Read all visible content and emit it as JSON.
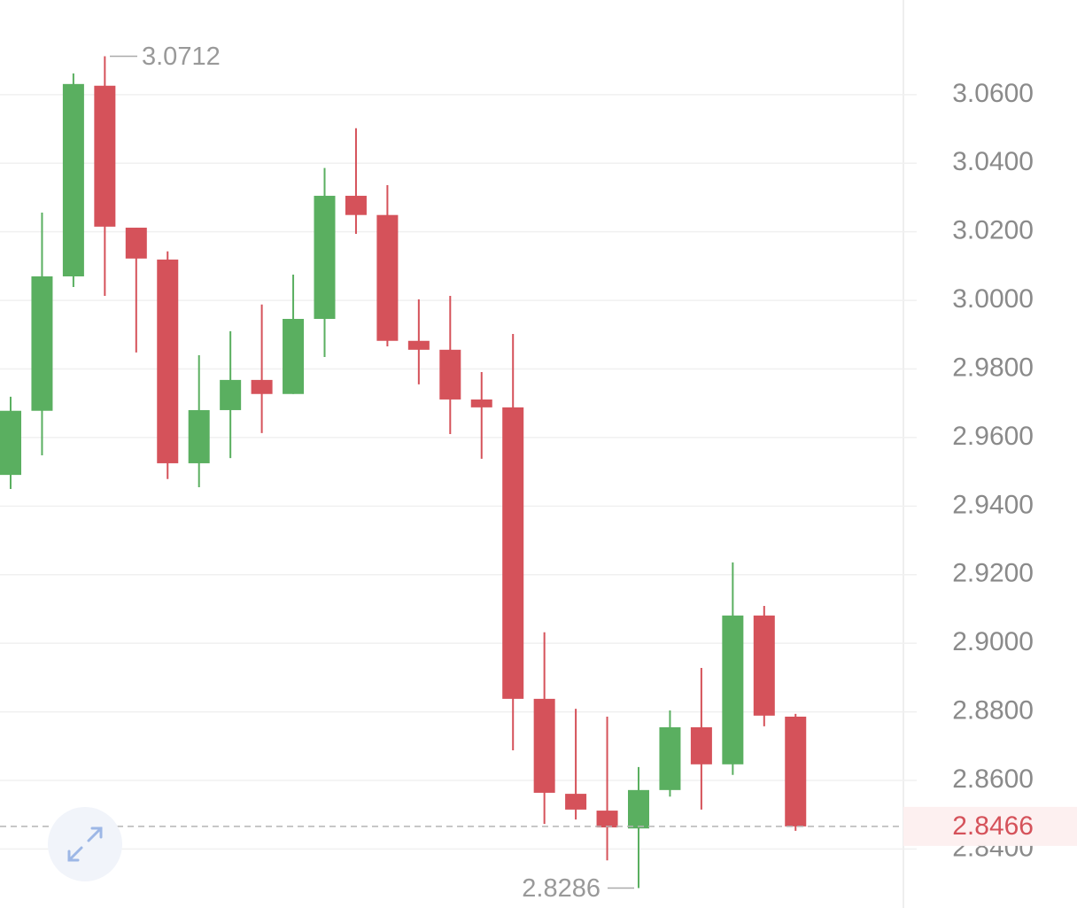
{
  "chart_data": {
    "type": "candlestick",
    "ylim": [
      2.8228,
      3.0876
    ],
    "yticks": [
      {
        "value": 3.06,
        "label": "3.0600"
      },
      {
        "value": 3.04,
        "label": "3.0400"
      },
      {
        "value": 3.02,
        "label": "3.0200"
      },
      {
        "value": 3.0,
        "label": "3.0000"
      },
      {
        "value": 2.98,
        "label": "2.9800"
      },
      {
        "value": 2.96,
        "label": "2.9600"
      },
      {
        "value": 2.94,
        "label": "2.9400"
      },
      {
        "value": 2.92,
        "label": "2.9200"
      },
      {
        "value": 2.9,
        "label": "2.9000"
      },
      {
        "value": 2.88,
        "label": "2.8800"
      },
      {
        "value": 2.86,
        "label": "2.8600"
      },
      {
        "value": 2.84,
        "label": "2.8400"
      }
    ],
    "grid": true,
    "up_color": "#5aaf60",
    "down_color": "#d5525a",
    "candles": [
      {
        "open": 2.9491,
        "high": 2.9719,
        "low": 2.945,
        "close": 2.9678
      },
      {
        "open": 2.9678,
        "high": 3.0256,
        "low": 2.9548,
        "close": 3.007
      },
      {
        "open": 3.007,
        "high": 3.0662,
        "low": 3.0039,
        "close": 3.0631
      },
      {
        "open": 3.0626,
        "high": 3.0712,
        "low": 3.0013,
        "close": 3.0215
      },
      {
        "open": 3.0212,
        "high": 3.0212,
        "low": 2.9848,
        "close": 3.0122
      },
      {
        "open": 3.0119,
        "high": 3.0143,
        "low": 2.9479,
        "close": 2.9525
      },
      {
        "open": 2.9525,
        "high": 2.984,
        "low": 2.9455,
        "close": 2.968
      },
      {
        "open": 2.968,
        "high": 2.991,
        "low": 2.954,
        "close": 2.9768
      },
      {
        "open": 2.9768,
        "high": 2.9988,
        "low": 2.9613,
        "close": 2.9727
      },
      {
        "open": 2.9727,
        "high": 3.0075,
        "low": 2.9727,
        "close": 2.9946
      },
      {
        "open": 2.9946,
        "high": 3.0386,
        "low": 2.9835,
        "close": 3.0305
      },
      {
        "open": 3.0305,
        "high": 3.0502,
        "low": 3.0194,
        "close": 3.0249
      },
      {
        "open": 3.0249,
        "high": 3.0336,
        "low": 2.9866,
        "close": 2.9882
      },
      {
        "open": 2.9882,
        "high": 3.0003,
        "low": 2.9755,
        "close": 2.9856
      },
      {
        "open": 2.9856,
        "high": 3.0013,
        "low": 2.961,
        "close": 2.9711
      },
      {
        "open": 2.9711,
        "high": 2.9791,
        "low": 2.9538,
        "close": 2.9688
      },
      {
        "open": 2.9688,
        "high": 2.9902,
        "low": 2.8688,
        "close": 2.8838
      },
      {
        "open": 2.8838,
        "high": 2.9032,
        "low": 2.8473,
        "close": 2.8564
      },
      {
        "open": 2.8561,
        "high": 2.8809,
        "low": 2.8486,
        "close": 2.8515
      },
      {
        "open": 2.8512,
        "high": 2.8786,
        "low": 2.8367,
        "close": 2.8463
      },
      {
        "open": 2.846,
        "high": 2.8639,
        "low": 2.8286,
        "close": 2.8572
      },
      {
        "open": 2.8572,
        "high": 2.8804,
        "low": 2.8553,
        "close": 2.8755
      },
      {
        "open": 2.8755,
        "high": 2.8928,
        "low": 2.8515,
        "close": 2.8647
      },
      {
        "open": 2.8647,
        "high": 2.9236,
        "low": 2.8616,
        "close": 2.9081
      },
      {
        "open": 2.9081,
        "high": 2.9109,
        "low": 2.8758,
        "close": 2.8789
      },
      {
        "open": 2.8786,
        "high": 2.8794,
        "low": 2.8453,
        "close": 2.8466
      }
    ],
    "max_label": 3.0712,
    "min_label": 2.8286,
    "last_price": 2.8466
  }
}
